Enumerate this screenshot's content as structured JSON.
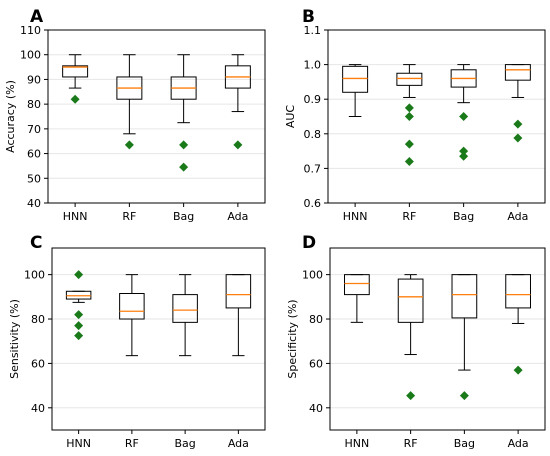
{
  "colors": {
    "median": "#ff7f0e",
    "outlier": "#1a7a1a",
    "box": "#000000",
    "grid": "#e6e6e6"
  },
  "chart_data": [
    {
      "type": "box",
      "panel": "A",
      "ylabel": "Accuracy (%)",
      "ylim": [
        40,
        110
      ],
      "yticks": [
        40,
        50,
        60,
        70,
        80,
        90,
        100,
        110
      ],
      "categories": [
        "HNN",
        "RF",
        "Bag",
        "Ada"
      ],
      "grid": true,
      "boxes": [
        {
          "whisker_low": 86.5,
          "q1": 91,
          "median": 95,
          "q3": 95.5,
          "whisker_high": 100,
          "outliers": [
            82
          ]
        },
        {
          "whisker_low": 68,
          "q1": 82,
          "median": 86.5,
          "q3": 91,
          "whisker_high": 100,
          "outliers": [
            63.5
          ]
        },
        {
          "whisker_low": 72.5,
          "q1": 82,
          "median": 86.5,
          "q3": 91,
          "whisker_high": 100,
          "outliers": [
            63.5,
            54.5
          ]
        },
        {
          "whisker_low": 77,
          "q1": 86.5,
          "median": 91,
          "q3": 95.5,
          "whisker_high": 100,
          "outliers": [
            63.5
          ]
        }
      ]
    },
    {
      "type": "box",
      "panel": "B",
      "ylabel": "AUC",
      "ylim": [
        0.6,
        1.1
      ],
      "yticks": [
        0.6,
        0.7,
        0.8,
        0.9,
        1.0,
        1.1
      ],
      "ytick_labels": [
        "0.6",
        "0.7",
        "0.8",
        "0.9",
        "1.0",
        "1.1"
      ],
      "categories": [
        "HNN",
        "RF",
        "Bag",
        "Ada"
      ],
      "grid": true,
      "boxes": [
        {
          "whisker_low": 0.85,
          "q1": 0.92,
          "median": 0.96,
          "q3": 0.995,
          "whisker_high": 1.0,
          "outliers": []
        },
        {
          "whisker_low": 0.905,
          "q1": 0.94,
          "median": 0.96,
          "q3": 0.975,
          "whisker_high": 1.0,
          "outliers": [
            0.875,
            0.85,
            0.77,
            0.72
          ]
        },
        {
          "whisker_low": 0.89,
          "q1": 0.935,
          "median": 0.96,
          "q3": 0.985,
          "whisker_high": 1.0,
          "outliers": [
            0.85,
            0.75,
            0.735
          ]
        },
        {
          "whisker_low": 0.905,
          "q1": 0.955,
          "median": 0.985,
          "q3": 1.0,
          "whisker_high": 1.0,
          "outliers": [
            0.828,
            0.788
          ]
        }
      ]
    },
    {
      "type": "box",
      "panel": "C",
      "ylabel": "Sensitivity (%)",
      "ylim": [
        30,
        112
      ],
      "yticks": [
        40,
        60,
        80,
        100
      ],
      "categories": [
        "HNN",
        "RF",
        "Bag",
        "Ada"
      ],
      "grid": true,
      "boxes": [
        {
          "whisker_low": 87.5,
          "q1": 89,
          "median": 90.5,
          "q3": 92.5,
          "whisker_high": 92.5,
          "outliers": [
            100,
            82,
            77,
            72.5
          ]
        },
        {
          "whisker_low": 63.5,
          "q1": 80,
          "median": 83.5,
          "q3": 91.5,
          "whisker_high": 100,
          "outliers": []
        },
        {
          "whisker_low": 63.5,
          "q1": 78.5,
          "median": 84,
          "q3": 91,
          "whisker_high": 100,
          "outliers": []
        },
        {
          "whisker_low": 63.5,
          "q1": 85,
          "median": 91,
          "q3": 100,
          "whisker_high": 100,
          "outliers": []
        }
      ]
    },
    {
      "type": "box",
      "panel": "D",
      "ylabel": "Specificity (%)",
      "ylim": [
        30,
        112
      ],
      "yticks": [
        40,
        60,
        80,
        100
      ],
      "categories": [
        "HNN",
        "RF",
        "Bag",
        "Ada"
      ],
      "grid": true,
      "boxes": [
        {
          "whisker_low": 78.5,
          "q1": 91,
          "median": 96,
          "q3": 100,
          "whisker_high": 100,
          "outliers": []
        },
        {
          "whisker_low": 64,
          "q1": 78.5,
          "median": 90,
          "q3": 98,
          "whisker_high": 100,
          "outliers": [
            45.5
          ]
        },
        {
          "whisker_low": 57,
          "q1": 80.5,
          "median": 91,
          "q3": 100,
          "whisker_high": 100,
          "outliers": [
            45.5
          ]
        },
        {
          "whisker_low": 78,
          "q1": 85,
          "median": 91,
          "q3": 100,
          "whisker_high": 100,
          "outliers": [
            57
          ]
        }
      ]
    }
  ]
}
